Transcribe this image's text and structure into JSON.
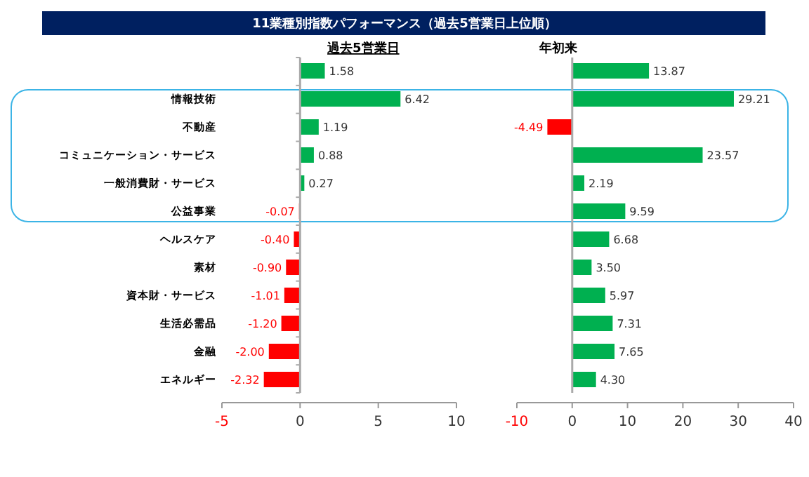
{
  "chart_data": [
    {
      "type": "bar",
      "orientation": "horizontal",
      "title": "11業種別指数パフォーマンス（過去5営業日上位順）",
      "subtitle": "過去5営業日",
      "categories": [
        null,
        "情報技術",
        "不動産",
        "コミュニケーション・サービス",
        "一般消費財・サービス",
        "公益事業",
        "ヘルスケア",
        "素材",
        "資本財・サービス",
        "生活必需品",
        "金融",
        "エネルギー"
      ],
      "values": [
        1.58,
        6.42,
        1.19,
        0.88,
        0.27,
        -0.07,
        -0.4,
        -0.9,
        -1.01,
        -1.2,
        -2.0,
        -2.32
      ],
      "value_labels": [
        "1.58",
        "6.42",
        "1.19",
        "0.88",
        "0.27",
        "-0.07",
        "-0.40",
        "-0.90",
        "-1.01",
        "-1.20",
        "-2.00",
        "-2.32"
      ],
      "colors": [
        "#00b050",
        "#00b050",
        "#00b050",
        "#00b050",
        "#00b050",
        "#ff0000",
        "#ff0000",
        "#ff0000",
        "#ff0000",
        "#ff0000",
        "#ff0000",
        "#ff0000"
      ],
      "xlim": [
        -5,
        10
      ],
      "xticks": [
        -5,
        0,
        5,
        10
      ]
    },
    {
      "type": "bar",
      "orientation": "horizontal",
      "title": "年初来",
      "values": [
        13.87,
        29.21,
        -4.49,
        23.57,
        2.19,
        9.59,
        6.68,
        3.5,
        5.97,
        7.31,
        7.65,
        4.3
      ],
      "value_labels": [
        "13.87",
        "29.21",
        "-4.49",
        "23.57",
        "2.19",
        "9.59",
        "6.68",
        "3.50",
        "5.97",
        "7.31",
        "7.65",
        "4.30"
      ],
      "colors": [
        "#00b050",
        "#00b050",
        "#ff0000",
        "#00b050",
        "#00b050",
        "#00b050",
        "#00b050",
        "#00b050",
        "#00b050",
        "#00b050",
        "#00b050",
        "#00b050"
      ],
      "xlim": [
        -10,
        40
      ],
      "xticks": [
        -10,
        0,
        10,
        20,
        30,
        40
      ],
      "tick_labels": "x"
    }
  ]
}
